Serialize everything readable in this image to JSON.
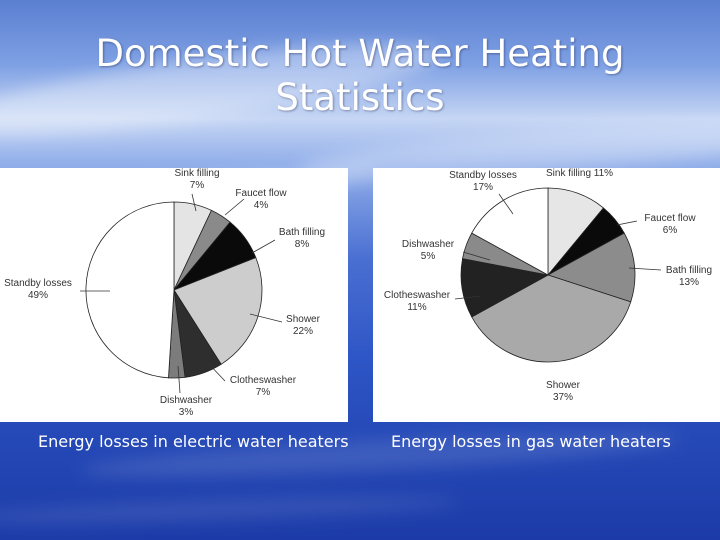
{
  "slide": {
    "title_line1": "Domestic Hot Water Heating",
    "title_line2": "Statistics"
  },
  "chart_data": [
    {
      "type": "pie",
      "caption": "Energy losses in electric water heaters",
      "slices": [
        {
          "label": "Sink filling",
          "value": 7,
          "text": "7%",
          "color": "#e4e4e4"
        },
        {
          "label": "Faucet flow",
          "value": 4,
          "text": "4%",
          "color": "#8a8a8a"
        },
        {
          "label": "Bath filling",
          "value": 8,
          "text": "8%",
          "color": "#0a0a0a"
        },
        {
          "label": "Shower",
          "value": 22,
          "text": "22%",
          "color": "#cdcdcd"
        },
        {
          "label": "Clotheswasher",
          "value": 7,
          "text": "7%",
          "color": "#2e2e2e"
        },
        {
          "label": "Dishwasher",
          "value": 3,
          "text": "3%",
          "color": "#7c7c7c"
        },
        {
          "label": "Standby losses",
          "value": 49,
          "text": "49%",
          "color": "#ffffff"
        }
      ]
    },
    {
      "type": "pie",
      "caption": "Energy losses in gas water heaters",
      "slices": [
        {
          "label": "Sink filling",
          "value": 11,
          "text": "11%",
          "color": "#e6e6e6"
        },
        {
          "label": "Faucet flow",
          "value": 6,
          "text": "6%",
          "color": "#0a0a0a"
        },
        {
          "label": "Bath filling",
          "value": 13,
          "text": "13%",
          "color": "#8c8c8c"
        },
        {
          "label": "Shower",
          "value": 37,
          "text": "37%",
          "color": "#a9a9a9"
        },
        {
          "label": "Clotheswasher",
          "value": 11,
          "text": "11%",
          "color": "#222222"
        },
        {
          "label": "Dishwasher",
          "value": 5,
          "text": "5%",
          "color": "#8a8a8a"
        },
        {
          "label": "Standby losses",
          "value": 17,
          "text": "17%",
          "color": "#ffffff"
        }
      ]
    }
  ]
}
